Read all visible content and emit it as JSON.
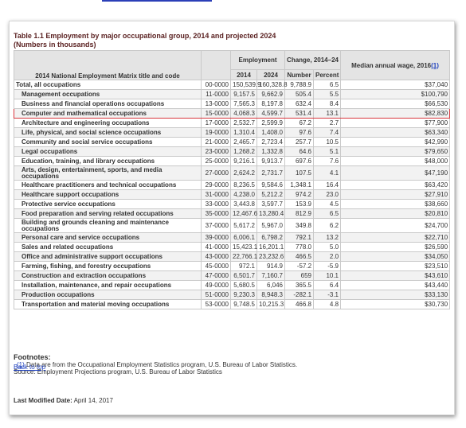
{
  "title_line1": "Table 1.1 Employment by major occupational group, 2014 and projected 2024",
  "title_line2": "(Numbers in thousands)",
  "headers": {
    "matrix_title": "2014 National Employment Matrix title and code",
    "employment": "Employment",
    "change": "Change, 2014–24",
    "median_wage": "Median annual wage, 2016",
    "median_wage_ref": "(1)",
    "year_2014": "2014",
    "year_2024": "2024",
    "number": "Number",
    "percent": "Percent"
  },
  "rows": [
    {
      "title": "Total, all occupations",
      "code": "00-0000",
      "e2014": "150,539.9",
      "e2024": "160,328.8",
      "num": "9,788.9",
      "pct": "6.5",
      "wage": "$37,040"
    },
    {
      "title": "Management occupations",
      "code": "11-0000",
      "e2014": "9,157.5",
      "e2024": "9,662.9",
      "num": "505.4",
      "pct": "5.5",
      "wage": "$100,790"
    },
    {
      "title": "Business and financial operations occupations",
      "code": "13-0000",
      "e2014": "7,565.3",
      "e2024": "8,197.8",
      "num": "632.4",
      "pct": "8.4",
      "wage": "$66,530"
    },
    {
      "title": "Computer and mathematical occupations",
      "code": "15-0000",
      "e2014": "4,068.3",
      "e2024": "4,599.7",
      "num": "531.4",
      "pct": "13.1",
      "wage": "$82,830"
    },
    {
      "title": "Architecture and engineering occupations",
      "code": "17-0000",
      "e2014": "2,532.7",
      "e2024": "2,599.9",
      "num": "67.2",
      "pct": "2.7",
      "wage": "$77,900"
    },
    {
      "title": "Life, physical, and social science occupations",
      "code": "19-0000",
      "e2014": "1,310.4",
      "e2024": "1,408.0",
      "num": "97.6",
      "pct": "7.4",
      "wage": "$63,340"
    },
    {
      "title": "Community and social service occupations",
      "code": "21-0000",
      "e2014": "2,465.7",
      "e2024": "2,723.4",
      "num": "257.7",
      "pct": "10.5",
      "wage": "$42,990"
    },
    {
      "title": "Legal occupations",
      "code": "23-0000",
      "e2014": "1,268.2",
      "e2024": "1,332.8",
      "num": "64.6",
      "pct": "5.1",
      "wage": "$79,650"
    },
    {
      "title": "Education, training, and library occupations",
      "code": "25-0000",
      "e2014": "9,216.1",
      "e2024": "9,913.7",
      "num": "697.6",
      "pct": "7.6",
      "wage": "$48,000"
    },
    {
      "title": "Arts, design, entertainment, sports, and media occupations",
      "code": "27-0000",
      "e2014": "2,624.2",
      "e2024": "2,731.7",
      "num": "107.5",
      "pct": "4.1",
      "wage": "$47,190"
    },
    {
      "title": "Healthcare practitioners and technical occupations",
      "code": "29-0000",
      "e2014": "8,236.5",
      "e2024": "9,584.6",
      "num": "1,348.1",
      "pct": "16.4",
      "wage": "$63,420"
    },
    {
      "title": "Healthcare support occupations",
      "code": "31-0000",
      "e2014": "4,238.0",
      "e2024": "5,212.2",
      "num": "974.2",
      "pct": "23.0",
      "wage": "$27,910"
    },
    {
      "title": "Protective service occupations",
      "code": "33-0000",
      "e2014": "3,443.8",
      "e2024": "3,597.7",
      "num": "153.9",
      "pct": "4.5",
      "wage": "$38,660"
    },
    {
      "title": "Food preparation and serving related occupations",
      "code": "35-0000",
      "e2014": "12,467.6",
      "e2024": "13,280.4",
      "num": "812.9",
      "pct": "6.5",
      "wage": "$20,810"
    },
    {
      "title": "Building and grounds cleaning and maintenance occupations",
      "code": "37-0000",
      "e2014": "5,617.2",
      "e2024": "5,967.0",
      "num": "349.8",
      "pct": "6.2",
      "wage": "$24,700"
    },
    {
      "title": "Personal care and service occupations",
      "code": "39-0000",
      "e2014": "6,006.1",
      "e2024": "6,798.2",
      "num": "792.1",
      "pct": "13.2",
      "wage": "$22,710"
    },
    {
      "title": "Sales and related occupations",
      "code": "41-0000",
      "e2014": "15,423.1",
      "e2024": "16,201.1",
      "num": "778.0",
      "pct": "5.0",
      "wage": "$26,590"
    },
    {
      "title": "Office and administrative support occupations",
      "code": "43-0000",
      "e2014": "22,766.1",
      "e2024": "23,232.6",
      "num": "466.5",
      "pct": "2.0",
      "wage": "$34,050"
    },
    {
      "title": "Farming, fishing, and forestry occupations",
      "code": "45-0000",
      "e2014": "972.1",
      "e2024": "914.9",
      "num": "-57.2",
      "pct": "-5.9",
      "wage": "$23,510"
    },
    {
      "title": "Construction and extraction occupations",
      "code": "47-0000",
      "e2014": "6,501.7",
      "e2024": "7,160.7",
      "num": "659",
      "pct": "10.1",
      "wage": "$43,610"
    },
    {
      "title": "Installation, maintenance, and repair occupations",
      "code": "49-0000",
      "e2014": "5,680.5",
      "e2024": "6,046",
      "num": "365.5",
      "pct": "6.4",
      "wage": "$43,440"
    },
    {
      "title": "Production occupations",
      "code": "51-0000",
      "e2014": "9,230.3",
      "e2024": "8,948.3",
      "num": "-282.1",
      "pct": "-3.1",
      "wage": "$33,130"
    },
    {
      "title": "Transportation and material moving occupations",
      "code": "53-0000",
      "e2014": "9,748.5",
      "e2024": "10,215.3",
      "num": "466.8",
      "pct": "4.8",
      "wage": "$30,730"
    }
  ],
  "footnotes": {
    "heading": "Footnotes:",
    "ref": "(1)",
    "note": " Data are from the Occupational Employment Statistics program, U.S. Bureau of Labor Statistics.",
    "source": "Source: Employment Projections program, U.S. Bureau of Labor Statistics"
  },
  "back_to_top": "Back to top",
  "last_modified_label": "Last Modified Date:",
  "last_modified_value": " April 14, 2017",
  "highlight_color": "#d9363e",
  "title_color": "#5b2222",
  "link_color": "#1d3fbd"
}
